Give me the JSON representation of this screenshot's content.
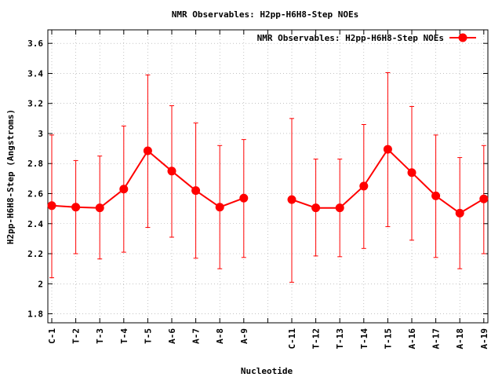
{
  "chart_data": {
    "type": "line",
    "title": "NMR Observables: H2pp-H6H8-Step NOEs",
    "xlabel": "Nucleotide",
    "ylabel": "H2pp-H6H8-Step (Angstroms)",
    "ylim": [
      1.74,
      3.69
    ],
    "yticks": [
      "1.8",
      "2",
      "2.2",
      "2.4",
      "2.6",
      "2.8",
      "3",
      "3.2",
      "3.4",
      "3.6"
    ],
    "grid": true,
    "legend_position": "top-right",
    "categories": [
      "C-1",
      "T-2",
      "T-3",
      "T-4",
      "T-5",
      "A-6",
      "A-7",
      "A-8",
      "A-9",
      "",
      "C-11",
      "T-12",
      "T-13",
      "T-14",
      "T-15",
      "A-16",
      "A-17",
      "A-18",
      "A-19"
    ],
    "series": [
      {
        "name": "NMR Observables: H2pp-H6H8-Step NOEs",
        "color": "#ff0000",
        "values": [
          2.52,
          2.51,
          2.505,
          2.63,
          2.885,
          2.75,
          2.62,
          2.51,
          2.57,
          null,
          2.56,
          2.505,
          2.505,
          2.65,
          2.895,
          2.74,
          2.585,
          2.47,
          2.565
        ],
        "err_low": [
          2.04,
          2.2,
          2.165,
          2.21,
          2.375,
          2.31,
          2.17,
          2.1,
          2.175,
          null,
          2.01,
          2.185,
          2.18,
          2.235,
          2.38,
          2.29,
          2.175,
          2.1,
          2.2
        ],
        "err_high": [
          2.99,
          2.82,
          2.85,
          3.05,
          3.39,
          3.185,
          3.07,
          2.92,
          2.96,
          null,
          3.1,
          2.83,
          2.83,
          3.06,
          3.405,
          3.18,
          2.99,
          2.84,
          2.92
        ]
      }
    ]
  }
}
